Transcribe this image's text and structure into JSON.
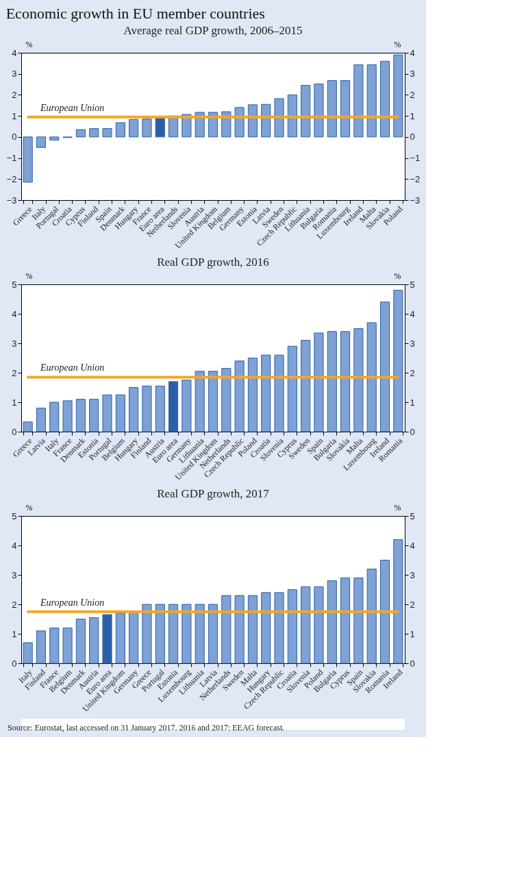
{
  "chart_data": [
    {
      "type": "bar",
      "title": "Economic growth in EU member countries",
      "subtitle": "Average real GDP growth, 2006–2015",
      "ylabel": "%",
      "y2label": "%",
      "categories": [
        "Greece",
        "Italy",
        "Portugal",
        "Croatia",
        "Cyprus",
        "Finland",
        "Spain",
        "Denmark",
        "Hungary",
        "France",
        "Euro area",
        "Netherlands",
        "Slovenia",
        "Austria",
        "United Kingdom",
        "Belgium",
        "Germany",
        "Estonia",
        "Latvia",
        "Sweden",
        "Czech Republic",
        "Lithuania",
        "Bulgaria",
        "Romania",
        "Luxembourg",
        "Ireland",
        "Malta",
        "Slovakia",
        "Poland"
      ],
      "values": [
        -2.15,
        -0.5,
        -0.15,
        -0.03,
        0.35,
        0.4,
        0.4,
        0.68,
        0.83,
        0.85,
        0.9,
        1.0,
        1.07,
        1.17,
        1.17,
        1.2,
        1.4,
        1.53,
        1.55,
        1.82,
        2.0,
        2.45,
        2.52,
        2.68,
        2.68,
        3.43,
        3.43,
        3.6,
        3.9
      ],
      "colors": [
        "#7ea1d6",
        "#7ea1d6",
        "#7ea1d6",
        "#7ea1d6",
        "#7ea1d6",
        "#7ea1d6",
        "#7ea1d6",
        "#7ea1d6",
        "#7ea1d6",
        "#7ea1d6",
        "#2c5fa8",
        "#7ea1d6",
        "#7ea1d6",
        "#7ea1d6",
        "#7ea1d6",
        "#7ea1d6",
        "#7ea1d6",
        "#7ea1d6",
        "#7ea1d6",
        "#7ea1d6",
        "#7ea1d6",
        "#7ea1d6",
        "#7ea1d6",
        "#7ea1d6",
        "#7ea1d6",
        "#7ea1d6",
        "#7ea1d6",
        "#7ea1d6",
        "#7ea1d6"
      ],
      "ylim": [
        -3,
        4
      ],
      "yticks": [
        -3,
        -2,
        -1,
        0,
        1,
        2,
        3,
        4
      ],
      "y2lim": [
        -3,
        4
      ],
      "y2ticks": [
        -3,
        -2,
        -1,
        0,
        1,
        2,
        3,
        4
      ],
      "ref_lines": [
        {
          "axis": "y",
          "value": 0.95,
          "label": "European Union",
          "color": "#f5a623"
        }
      ],
      "grid": false,
      "legend": false
    },
    {
      "type": "bar",
      "title": "Real GDP growth, 2016",
      "ylabel": "%",
      "y2label": "%",
      "categories": [
        "Greece",
        "Latvia",
        "Italy",
        "France",
        "Denmark",
        "Estonia",
        "Portugal",
        "Belgium",
        "Hungary",
        "Finland",
        "Austria",
        "Euro area",
        "Germany",
        "Lithuania",
        "United Kingdom",
        "Netherlands",
        "Czech Republic",
        "Poland",
        "Croatia",
        "Slovenia",
        "Cyprus",
        "Sweden",
        "Spain",
        "Bulgaria",
        "Slovakia",
        "Malta",
        "Luxembourg",
        "Ireland",
        "Romania"
      ],
      "values": [
        0.33,
        0.8,
        1.0,
        1.05,
        1.1,
        1.1,
        1.25,
        1.25,
        1.5,
        1.55,
        1.55,
        1.7,
        1.75,
        2.05,
        2.05,
        2.15,
        2.4,
        2.5,
        2.6,
        2.6,
        2.9,
        3.1,
        3.35,
        3.4,
        3.4,
        3.5,
        3.7,
        4.4,
        4.8
      ],
      "colors": [
        "#7ea1d6",
        "#7ea1d6",
        "#7ea1d6",
        "#7ea1d6",
        "#7ea1d6",
        "#7ea1d6",
        "#7ea1d6",
        "#7ea1d6",
        "#7ea1d6",
        "#7ea1d6",
        "#7ea1d6",
        "#2c5fa8",
        "#7ea1d6",
        "#7ea1d6",
        "#7ea1d6",
        "#7ea1d6",
        "#7ea1d6",
        "#7ea1d6",
        "#7ea1d6",
        "#7ea1d6",
        "#7ea1d6",
        "#7ea1d6",
        "#7ea1d6",
        "#7ea1d6",
        "#7ea1d6",
        "#7ea1d6",
        "#7ea1d6",
        "#7ea1d6",
        "#7ea1d6"
      ],
      "ylim": [
        0,
        5
      ],
      "yticks": [
        0,
        1,
        2,
        3,
        4,
        5
      ],
      "y2lim": [
        0,
        5
      ],
      "y2ticks": [
        0,
        1,
        2,
        3,
        4,
        5
      ],
      "ref_lines": [
        {
          "axis": "y",
          "value": 1.85,
          "label": "European Union",
          "color": "#f5a623"
        }
      ],
      "grid": false,
      "legend": false
    },
    {
      "type": "bar",
      "title": "Real GDP growth, 2017",
      "ylabel": "%",
      "y2label": "%",
      "categories": [
        "Italy",
        "Finland",
        "France",
        "Belgium",
        "Denmark",
        "Austria",
        "Euro area",
        "United Kingdom",
        "Germany",
        "Greece",
        "Portugal",
        "Estonia",
        "Luxembourg",
        "Lithuania",
        "Latvia",
        "Netherlands",
        "Sweden",
        "Malta",
        "Hungary",
        "Czech Republic",
        "Croatia",
        "Slovenia",
        "Poland",
        "Bulgaria",
        "Cyprus",
        "Spain",
        "Slovakia",
        "Romania",
        "Ireland"
      ],
      "values": [
        0.7,
        1.1,
        1.2,
        1.2,
        1.5,
        1.55,
        1.65,
        1.7,
        1.75,
        2.0,
        2.0,
        2.0,
        2.0,
        2.0,
        2.0,
        2.3,
        2.3,
        2.3,
        2.4,
        2.4,
        2.5,
        2.6,
        2.6,
        2.8,
        2.9,
        2.9,
        3.2,
        3.5,
        4.2
      ],
      "colors": [
        "#7ea1d6",
        "#7ea1d6",
        "#7ea1d6",
        "#7ea1d6",
        "#7ea1d6",
        "#7ea1d6",
        "#2c5fa8",
        "#7ea1d6",
        "#7ea1d6",
        "#7ea1d6",
        "#7ea1d6",
        "#7ea1d6",
        "#7ea1d6",
        "#7ea1d6",
        "#7ea1d6",
        "#7ea1d6",
        "#7ea1d6",
        "#7ea1d6",
        "#7ea1d6",
        "#7ea1d6",
        "#7ea1d6",
        "#7ea1d6",
        "#7ea1d6",
        "#7ea1d6",
        "#7ea1d6",
        "#7ea1d6",
        "#7ea1d6",
        "#7ea1d6",
        "#7ea1d6"
      ],
      "ylim": [
        0,
        5
      ],
      "yticks": [
        0,
        1,
        2,
        3,
        4,
        5
      ],
      "y2lim": [
        0,
        5
      ],
      "y2ticks": [
        0,
        1,
        2,
        3,
        4,
        5
      ],
      "ref_lines": [
        {
          "axis": "y",
          "value": 1.75,
          "label": "European Union",
          "color": "#f5a623"
        }
      ],
      "annotations": [
        "Source: Eurostat, last accessed on 31 January 2017. 2016 and 2017: EEAG forecast."
      ],
      "grid": false,
      "legend": false
    }
  ]
}
